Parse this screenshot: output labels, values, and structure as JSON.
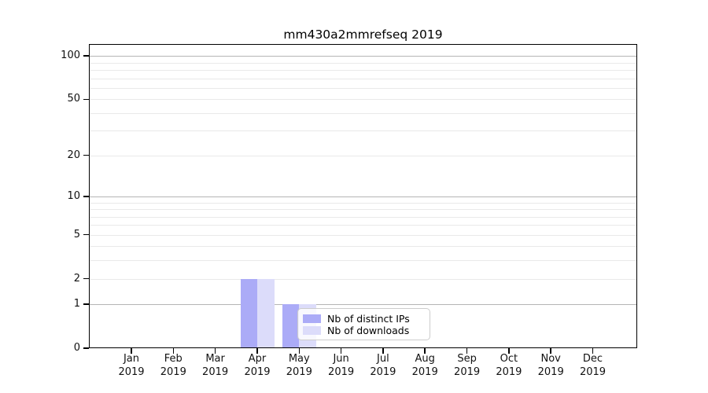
{
  "chart_data": {
    "type": "bar",
    "title": "mm430a2mmrefseq 2019",
    "x_axis": {
      "months": [
        "Jan",
        "Feb",
        "Mar",
        "Apr",
        "May",
        "Jun",
        "Jul",
        "Aug",
        "Sep",
        "Oct",
        "Nov",
        "Dec"
      ],
      "year": "2019"
    },
    "y_axis": {
      "ticks": [
        0,
        1,
        2,
        5,
        10,
        20,
        50,
        100
      ],
      "scale": "log1p",
      "ylim": [
        0,
        121
      ]
    },
    "grid": {
      "major_values": [
        1,
        10,
        100
      ],
      "minor_values": [
        2,
        3,
        4,
        5,
        6,
        7,
        8,
        9,
        20,
        30,
        40,
        50,
        60,
        70,
        80,
        90
      ],
      "major_color": "#b5b5b5",
      "minor_color": "#e9e9e9"
    },
    "series": [
      {
        "name": "Nb of distinct IPs",
        "color": "#ababf7",
        "values": [
          0,
          0,
          0,
          2,
          1,
          0,
          0,
          0,
          0,
          0,
          0,
          0
        ]
      },
      {
        "name": "Nb of downloads",
        "color": "#dcdcfa",
        "values": [
          0,
          0,
          0,
          2,
          1,
          0,
          0,
          0,
          0,
          0,
          0,
          0
        ]
      }
    ],
    "legend": {
      "items": [
        "Nb of distinct IPs",
        "Nb of downloads"
      ]
    }
  }
}
